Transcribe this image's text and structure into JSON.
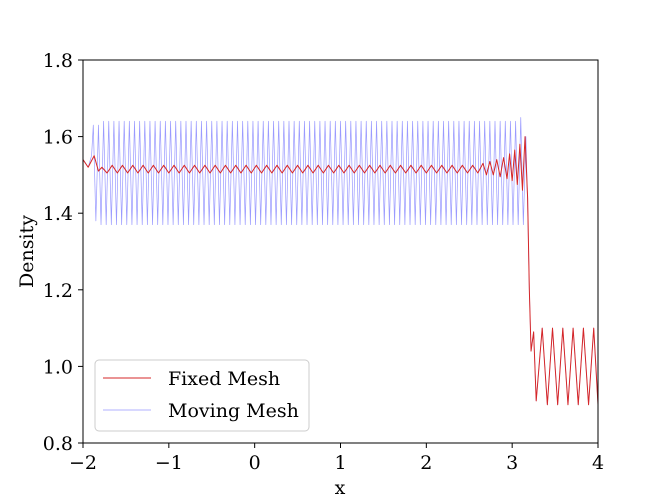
{
  "chart_data": {
    "type": "line",
    "title": "",
    "xlabel": "x",
    "ylabel": "Density",
    "xlim": [
      -2,
      4
    ],
    "ylim": [
      0.8,
      1.8
    ],
    "xticks": [
      {
        "value": -2,
        "label": "−2"
      },
      {
        "value": -1,
        "label": "−1"
      },
      {
        "value": 0,
        "label": "0"
      },
      {
        "value": 1,
        "label": "1"
      },
      {
        "value": 2,
        "label": "2"
      },
      {
        "value": 3,
        "label": "3"
      },
      {
        "value": 4,
        "label": "4"
      }
    ],
    "yticks": [
      {
        "value": 0.8,
        "label": "0.8"
      },
      {
        "value": 1.0,
        "label": "1.0"
      },
      {
        "value": 1.2,
        "label": "1.2"
      },
      {
        "value": 1.4,
        "label": "1.4"
      },
      {
        "value": 1.6,
        "label": "1.6"
      },
      {
        "value": 1.8,
        "label": "1.8"
      }
    ],
    "grid": false,
    "legend_position": "lower-left",
    "series": [
      {
        "name": "Fixed Mesh",
        "color": "#d62728",
        "points": [
          [
            -2.0,
            1.54
          ],
          [
            -1.94,
            1.52
          ],
          [
            -1.87,
            1.55
          ],
          [
            -1.82,
            1.51
          ],
          [
            -1.78,
            1.52
          ],
          [
            -1.72,
            1.505
          ],
          [
            -1.66,
            1.525
          ],
          [
            -1.6,
            1.505
          ],
          [
            -1.54,
            1.525
          ],
          [
            -1.48,
            1.505
          ],
          [
            -1.42,
            1.525
          ],
          [
            -1.36,
            1.505
          ],
          [
            -1.3,
            1.525
          ],
          [
            -1.24,
            1.505
          ],
          [
            -1.18,
            1.525
          ],
          [
            -1.12,
            1.505
          ],
          [
            -1.06,
            1.525
          ],
          [
            -1.0,
            1.505
          ],
          [
            -0.94,
            1.525
          ],
          [
            -0.88,
            1.505
          ],
          [
            -0.82,
            1.525
          ],
          [
            -0.76,
            1.505
          ],
          [
            -0.7,
            1.525
          ],
          [
            -0.64,
            1.505
          ],
          [
            -0.58,
            1.525
          ],
          [
            -0.52,
            1.505
          ],
          [
            -0.46,
            1.525
          ],
          [
            -0.4,
            1.505
          ],
          [
            -0.34,
            1.525
          ],
          [
            -0.28,
            1.505
          ],
          [
            -0.22,
            1.525
          ],
          [
            -0.16,
            1.505
          ],
          [
            -0.1,
            1.525
          ],
          [
            -0.04,
            1.505
          ],
          [
            0.02,
            1.525
          ],
          [
            0.08,
            1.505
          ],
          [
            0.14,
            1.525
          ],
          [
            0.2,
            1.505
          ],
          [
            0.26,
            1.525
          ],
          [
            0.32,
            1.505
          ],
          [
            0.38,
            1.525
          ],
          [
            0.44,
            1.505
          ],
          [
            0.5,
            1.525
          ],
          [
            0.56,
            1.505
          ],
          [
            0.62,
            1.525
          ],
          [
            0.68,
            1.505
          ],
          [
            0.74,
            1.525
          ],
          [
            0.8,
            1.505
          ],
          [
            0.86,
            1.525
          ],
          [
            0.92,
            1.505
          ],
          [
            0.98,
            1.525
          ],
          [
            1.04,
            1.505
          ],
          [
            1.1,
            1.525
          ],
          [
            1.16,
            1.505
          ],
          [
            1.22,
            1.525
          ],
          [
            1.28,
            1.505
          ],
          [
            1.34,
            1.525
          ],
          [
            1.4,
            1.505
          ],
          [
            1.46,
            1.525
          ],
          [
            1.52,
            1.505
          ],
          [
            1.58,
            1.525
          ],
          [
            1.64,
            1.505
          ],
          [
            1.7,
            1.525
          ],
          [
            1.76,
            1.505
          ],
          [
            1.82,
            1.525
          ],
          [
            1.88,
            1.505
          ],
          [
            1.94,
            1.525
          ],
          [
            2.0,
            1.505
          ],
          [
            2.06,
            1.525
          ],
          [
            2.12,
            1.505
          ],
          [
            2.18,
            1.525
          ],
          [
            2.24,
            1.505
          ],
          [
            2.3,
            1.525
          ],
          [
            2.36,
            1.505
          ],
          [
            2.42,
            1.525
          ],
          [
            2.48,
            1.505
          ],
          [
            2.54,
            1.525
          ],
          [
            2.6,
            1.505
          ],
          [
            2.66,
            1.53
          ],
          [
            2.7,
            1.5
          ],
          [
            2.74,
            1.535
          ],
          [
            2.78,
            1.5
          ],
          [
            2.82,
            1.54
          ],
          [
            2.86,
            1.495
          ],
          [
            2.9,
            1.545
          ],
          [
            2.94,
            1.49
          ],
          [
            2.97,
            1.555
          ],
          [
            3.0,
            1.485
          ],
          [
            3.03,
            1.565
          ],
          [
            3.06,
            1.475
          ],
          [
            3.09,
            1.58
          ],
          [
            3.12,
            1.46
          ],
          [
            3.15,
            1.6
          ],
          [
            3.18,
            1.44
          ],
          [
            3.2,
            1.2
          ],
          [
            3.22,
            1.04
          ],
          [
            3.25,
            1.09
          ],
          [
            3.28,
            0.91
          ],
          [
            3.35,
            1.1
          ],
          [
            3.41,
            0.9
          ],
          [
            3.47,
            1.1
          ],
          [
            3.53,
            0.9
          ],
          [
            3.59,
            1.1
          ],
          [
            3.65,
            0.9
          ],
          [
            3.71,
            1.1
          ],
          [
            3.77,
            0.9
          ],
          [
            3.83,
            1.1
          ],
          [
            3.89,
            0.9
          ],
          [
            3.95,
            1.1
          ],
          [
            4.0,
            0.9
          ]
        ]
      },
      {
        "name": "Moving Mesh",
        "color": "#1f1fff",
        "points": [
          [
            -2.0,
            1.54
          ],
          [
            -1.94,
            1.52
          ],
          [
            -1.9,
            1.55
          ],
          [
            -1.88,
            1.63
          ],
          [
            -1.85,
            1.38
          ],
          [
            -1.82,
            1.63
          ],
          [
            -1.79,
            1.37
          ],
          [
            -1.76,
            1.64
          ],
          [
            -1.73,
            1.37
          ],
          [
            -1.7,
            1.64
          ],
          [
            -1.67,
            1.37
          ],
          [
            -1.64,
            1.64
          ],
          [
            -1.61,
            1.37
          ],
          [
            -1.58,
            1.64
          ],
          [
            -1.55,
            1.37
          ],
          [
            -1.52,
            1.64
          ],
          [
            -1.49,
            1.37
          ],
          [
            -1.46,
            1.64
          ],
          [
            -1.43,
            1.37
          ],
          [
            -1.4,
            1.64
          ],
          [
            -1.37,
            1.37
          ],
          [
            -1.34,
            1.64
          ],
          [
            -1.31,
            1.37
          ],
          [
            -1.28,
            1.64
          ],
          [
            -1.25,
            1.37
          ],
          [
            -1.22,
            1.64
          ],
          [
            -1.19,
            1.37
          ],
          [
            -1.16,
            1.64
          ],
          [
            -1.13,
            1.37
          ],
          [
            -1.1,
            1.64
          ],
          [
            -1.07,
            1.37
          ],
          [
            -1.04,
            1.64
          ],
          [
            -1.01,
            1.37
          ],
          [
            -0.98,
            1.64
          ],
          [
            -0.95,
            1.37
          ],
          [
            -0.92,
            1.64
          ],
          [
            -0.89,
            1.37
          ],
          [
            -0.86,
            1.64
          ],
          [
            -0.83,
            1.37
          ],
          [
            -0.8,
            1.64
          ],
          [
            -0.77,
            1.37
          ],
          [
            -0.74,
            1.64
          ],
          [
            -0.71,
            1.37
          ],
          [
            -0.68,
            1.64
          ],
          [
            -0.65,
            1.37
          ],
          [
            -0.62,
            1.64
          ],
          [
            -0.59,
            1.37
          ],
          [
            -0.56,
            1.64
          ],
          [
            -0.53,
            1.37
          ],
          [
            -0.5,
            1.64
          ],
          [
            -0.47,
            1.37
          ],
          [
            -0.44,
            1.64
          ],
          [
            -0.41,
            1.37
          ],
          [
            -0.38,
            1.64
          ],
          [
            -0.35,
            1.37
          ],
          [
            -0.32,
            1.64
          ],
          [
            -0.29,
            1.37
          ],
          [
            -0.26,
            1.64
          ],
          [
            -0.23,
            1.37
          ],
          [
            -0.2,
            1.64
          ],
          [
            -0.17,
            1.37
          ],
          [
            -0.14,
            1.64
          ],
          [
            -0.11,
            1.37
          ],
          [
            -0.08,
            1.64
          ],
          [
            -0.05,
            1.37
          ],
          [
            -0.02,
            1.64
          ],
          [
            0.01,
            1.37
          ],
          [
            0.04,
            1.64
          ],
          [
            0.07,
            1.37
          ],
          [
            0.1,
            1.64
          ],
          [
            0.13,
            1.37
          ],
          [
            0.16,
            1.64
          ],
          [
            0.19,
            1.37
          ],
          [
            0.22,
            1.64
          ],
          [
            0.25,
            1.37
          ],
          [
            0.28,
            1.64
          ],
          [
            0.31,
            1.37
          ],
          [
            0.34,
            1.64
          ],
          [
            0.37,
            1.37
          ],
          [
            0.4,
            1.64
          ],
          [
            0.43,
            1.37
          ],
          [
            0.46,
            1.64
          ],
          [
            0.49,
            1.37
          ],
          [
            0.52,
            1.64
          ],
          [
            0.55,
            1.37
          ],
          [
            0.58,
            1.64
          ],
          [
            0.61,
            1.37
          ],
          [
            0.64,
            1.64
          ],
          [
            0.67,
            1.37
          ],
          [
            0.7,
            1.64
          ],
          [
            0.73,
            1.37
          ],
          [
            0.76,
            1.64
          ],
          [
            0.79,
            1.37
          ],
          [
            0.82,
            1.64
          ],
          [
            0.85,
            1.37
          ],
          [
            0.88,
            1.64
          ],
          [
            0.91,
            1.37
          ],
          [
            0.94,
            1.64
          ],
          [
            0.97,
            1.37
          ],
          [
            1.0,
            1.64
          ],
          [
            1.03,
            1.37
          ],
          [
            1.06,
            1.64
          ],
          [
            1.09,
            1.37
          ],
          [
            1.12,
            1.64
          ],
          [
            1.15,
            1.37
          ],
          [
            1.18,
            1.64
          ],
          [
            1.21,
            1.37
          ],
          [
            1.24,
            1.64
          ],
          [
            1.27,
            1.37
          ],
          [
            1.3,
            1.64
          ],
          [
            1.33,
            1.37
          ],
          [
            1.36,
            1.64
          ],
          [
            1.39,
            1.37
          ],
          [
            1.42,
            1.64
          ],
          [
            1.45,
            1.37
          ],
          [
            1.48,
            1.64
          ],
          [
            1.51,
            1.37
          ],
          [
            1.54,
            1.64
          ],
          [
            1.57,
            1.37
          ],
          [
            1.6,
            1.64
          ],
          [
            1.63,
            1.37
          ],
          [
            1.66,
            1.64
          ],
          [
            1.69,
            1.37
          ],
          [
            1.72,
            1.64
          ],
          [
            1.75,
            1.37
          ],
          [
            1.78,
            1.64
          ],
          [
            1.81,
            1.37
          ],
          [
            1.84,
            1.64
          ],
          [
            1.87,
            1.37
          ],
          [
            1.9,
            1.64
          ],
          [
            1.93,
            1.37
          ],
          [
            1.96,
            1.64
          ],
          [
            1.99,
            1.37
          ],
          [
            2.02,
            1.64
          ],
          [
            2.05,
            1.37
          ],
          [
            2.08,
            1.64
          ],
          [
            2.11,
            1.37
          ],
          [
            2.14,
            1.64
          ],
          [
            2.17,
            1.37
          ],
          [
            2.2,
            1.64
          ],
          [
            2.23,
            1.37
          ],
          [
            2.26,
            1.64
          ],
          [
            2.29,
            1.37
          ],
          [
            2.32,
            1.64
          ],
          [
            2.35,
            1.37
          ],
          [
            2.38,
            1.64
          ],
          [
            2.41,
            1.37
          ],
          [
            2.44,
            1.64
          ],
          [
            2.47,
            1.37
          ],
          [
            2.5,
            1.64
          ],
          [
            2.53,
            1.37
          ],
          [
            2.56,
            1.64
          ],
          [
            2.59,
            1.37
          ],
          [
            2.62,
            1.64
          ],
          [
            2.65,
            1.37
          ],
          [
            2.68,
            1.64
          ],
          [
            2.71,
            1.37
          ],
          [
            2.74,
            1.64
          ],
          [
            2.77,
            1.37
          ],
          [
            2.8,
            1.64
          ],
          [
            2.83,
            1.37
          ],
          [
            2.86,
            1.64
          ],
          [
            2.89,
            1.37
          ],
          [
            2.92,
            1.64
          ],
          [
            2.95,
            1.37
          ],
          [
            2.98,
            1.64
          ],
          [
            3.01,
            1.37
          ],
          [
            3.04,
            1.64
          ],
          [
            3.07,
            1.37
          ],
          [
            3.1,
            1.65
          ],
          [
            3.13,
            1.37
          ],
          [
            3.16,
            1.6
          ],
          [
            3.18,
            1.42
          ],
          [
            3.2,
            1.2
          ],
          [
            3.22,
            1.04
          ],
          [
            3.25,
            1.09
          ],
          [
            3.28,
            0.91
          ],
          [
            3.35,
            1.1
          ],
          [
            3.41,
            0.9
          ],
          [
            3.47,
            1.1
          ],
          [
            3.53,
            0.9
          ],
          [
            3.59,
            1.1
          ],
          [
            3.65,
            0.9
          ],
          [
            3.71,
            1.1
          ],
          [
            3.77,
            0.9
          ],
          [
            3.83,
            1.1
          ],
          [
            3.89,
            0.9
          ],
          [
            3.95,
            1.1
          ],
          [
            4.0,
            0.9
          ]
        ]
      }
    ]
  }
}
